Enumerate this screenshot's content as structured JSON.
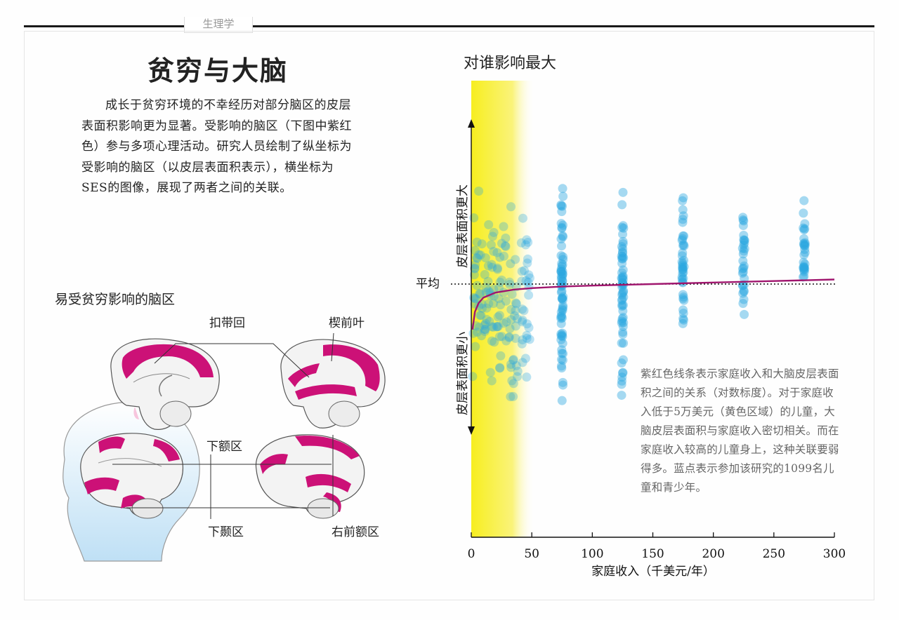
{
  "header": {
    "section": "生理学"
  },
  "article": {
    "title": "贫穷与大脑",
    "intro": "成长于贫穷环境的不幸经历对部分脑区的皮层表面积影响更为显著。受影响的脑区（下图中紫红色）参与多项心理活动。研究人员绘制了纵坐标为受影响的脑区（以皮层表面积表示），横坐标为SES的图像，展现了两者之间的关联。"
  },
  "brain_figure": {
    "heading": "易受贫穷影响的脑区",
    "labels": {
      "cingulate": "扣带回",
      "precuneus": "楔前叶",
      "inferior_frontal": "下额区",
      "inferior_temporal": "下颞区",
      "right_frontal": "右前额区"
    },
    "highlight_color": "#cc1177"
  },
  "chart_data": {
    "type": "scatter",
    "title": "对谁影响最大",
    "xlabel": "家庭收入（千美元/年）",
    "ylabel_top": "皮层表面积更大",
    "ylabel_bottom": "皮层表面积更小",
    "average_label": "平均",
    "x_ticks": [
      "0",
      "50",
      "100",
      "150",
      "200",
      "250",
      "300"
    ],
    "xlim": [
      0,
      300
    ],
    "highlight_region": [
      0,
      50
    ],
    "trend_curve": {
      "description": "log-scale relation",
      "x": [
        1,
        3,
        6,
        10,
        20,
        35,
        50,
        75,
        100,
        150,
        200,
        250,
        300
      ],
      "y": [
        -0.9,
        -0.55,
        -0.38,
        -0.27,
        -0.17,
        -0.11,
        -0.08,
        -0.05,
        -0.03,
        0.0,
        0.03,
        0.06,
        0.09
      ]
    },
    "series": [
      {
        "name": "儿童和青少年",
        "count": 1099,
        "groups": [
          {
            "x": 5,
            "n": 32,
            "ymin": -2.3,
            "ymax": 2.6
          },
          {
            "x": 15,
            "n": 34,
            "ymin": -2.6,
            "ymax": 2.3
          },
          {
            "x": 25,
            "n": 30,
            "ymin": -2.2,
            "ymax": 2.1
          },
          {
            "x": 35,
            "n": 30,
            "ymin": -3.5,
            "ymax": 2.1
          },
          {
            "x": 45,
            "n": 30,
            "ymin": -2.3,
            "ymax": 1.9
          },
          {
            "x": 75,
            "n": 70,
            "ymin": -3.2,
            "ymax": 2.8
          },
          {
            "x": 125,
            "n": 60,
            "ymin": -2.6,
            "ymax": 2.4
          },
          {
            "x": 175,
            "n": 40,
            "ymin": -1.3,
            "ymax": 2.4
          },
          {
            "x": 225,
            "n": 30,
            "ymin": -1.0,
            "ymax": 1.9
          },
          {
            "x": 275,
            "n": 28,
            "ymin": -0.9,
            "ymax": 2.2
          }
        ]
      }
    ],
    "colors": {
      "dots": "#2aa8e0",
      "curve": "#a0166e",
      "highlight": "#f4ec2a"
    },
    "note": "紫红色线条表示家庭收入和大脑皮层表面积之间的关系（对数标度）。对于家庭收入低于5万美元（黄色区域）的儿童，大脑皮层表面积与家庭收入密切相关。而在家庭收入较高的儿童身上，这种关联要弱得多。蓝点表示参加该研究的1099名儿童和青少年。"
  }
}
